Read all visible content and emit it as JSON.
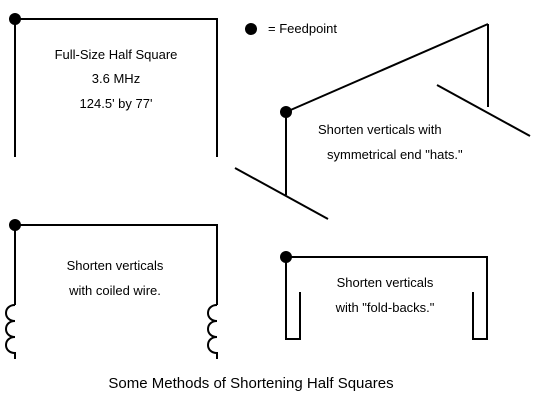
{
  "legend": {
    "label": "= Feedpoint"
  },
  "panels": {
    "full_size": {
      "title": "Full-Size Half Square",
      "frequency": "3.6 MHz",
      "dimensions": "124.5' by 77'"
    },
    "end_hats": {
      "line1": "Shorten verticals with",
      "line2": "symmetrical end \"hats.\""
    },
    "coiled": {
      "line1": "Shorten verticals",
      "line2": "with coiled wire."
    },
    "fold_backs": {
      "line1": "Shorten verticals",
      "line2": "with \"fold-backs.\""
    }
  },
  "caption": "Some Methods of Shortening Half Squares"
}
